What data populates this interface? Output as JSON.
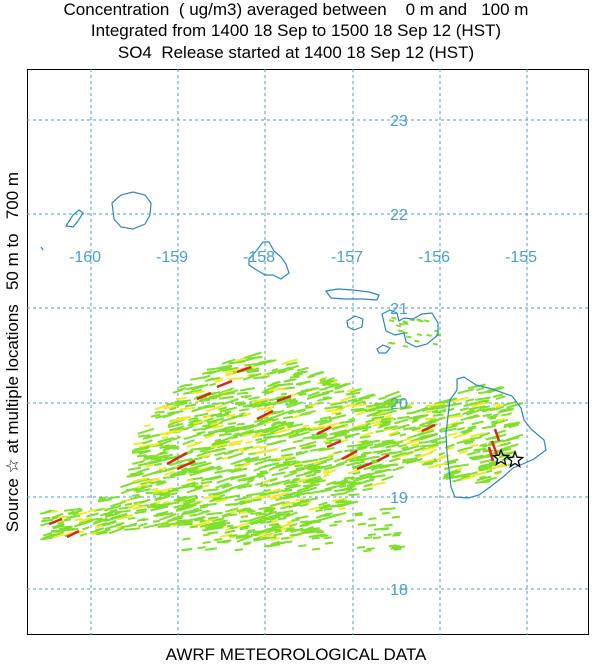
{
  "header": {
    "line1": "Concentration  ( ug/m3) averaged between    0 m and   100 m",
    "line2": "Integrated from 1400 18 Sep to 1500 18 Sep 12 (HST)",
    "line3": "SO4  Release started at 1400 18 Sep 12 (HST)"
  },
  "side_label": "Source ☆ at multiple locations   50 m to   700 m",
  "footer": "AWRF METEOROLOGICAL DATA",
  "map": {
    "longitude_labels": [
      "-160",
      "-159",
      "-158",
      "-157",
      "-156",
      "-155"
    ],
    "latitude_labels": [
      "23",
      "22",
      "21",
      "20",
      "19",
      "18"
    ],
    "colors": {
      "grid": "#4a9fd6",
      "coast": "#2a86c8",
      "plume_low": "#7ee02a",
      "plume_mid": "#f1ea2a",
      "plume_high": "#d9261a"
    },
    "source_markers": [
      {
        "symbol": "star",
        "label": "source-1"
      },
      {
        "symbol": "star",
        "label": "source-2"
      }
    ]
  }
}
